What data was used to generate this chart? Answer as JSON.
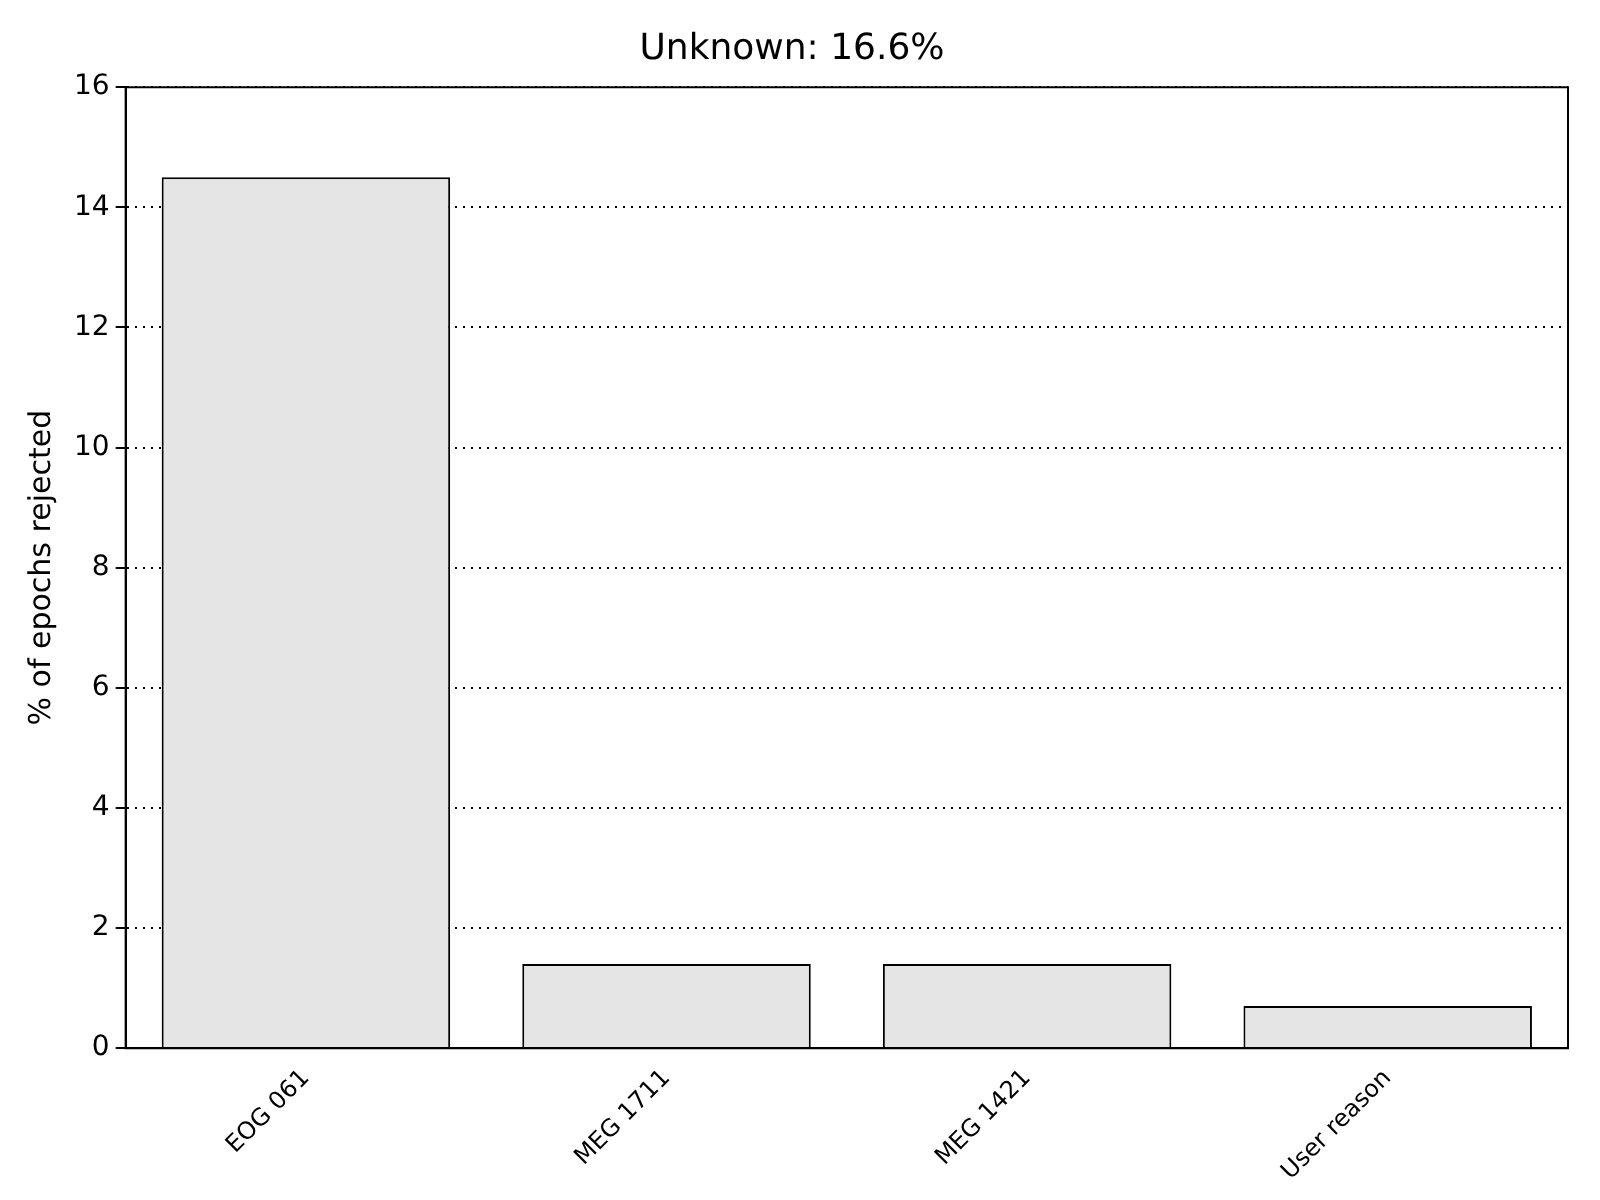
{
  "chart_data": {
    "type": "bar",
    "title": "Unknown: 16.6%",
    "ylabel": "% of epochs rejected",
    "categories": [
      "EOG 061",
      "MEG 1711",
      "MEG 1421",
      "User reason"
    ],
    "values": [
      14.5,
      1.4,
      1.4,
      0.7
    ],
    "color": "#e5e5e5",
    "ylim": [
      0,
      16
    ],
    "yticks": [
      0,
      2,
      4,
      6,
      8,
      10,
      12,
      14,
      16
    ],
    "grid": "y",
    "line_style": "dotted"
  }
}
